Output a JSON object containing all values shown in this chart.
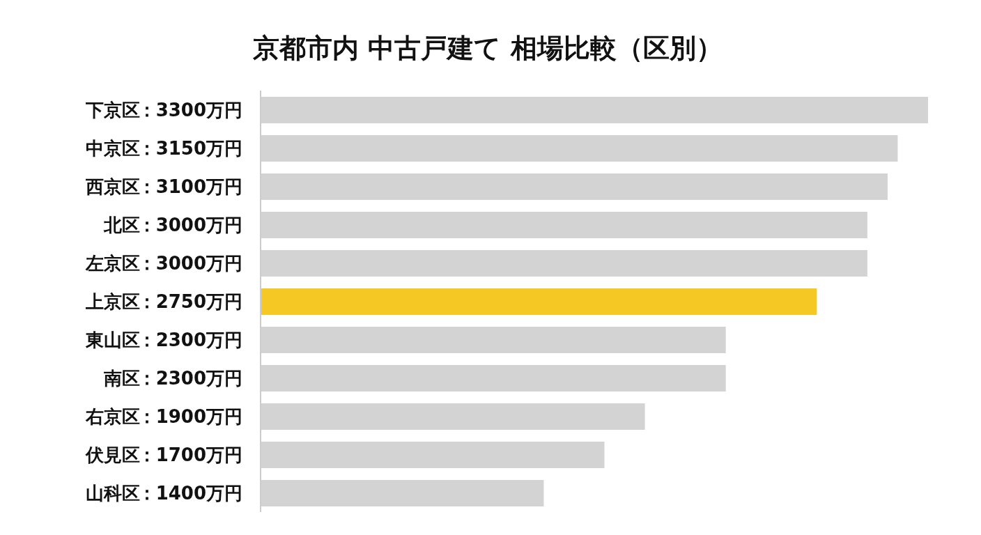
{
  "chart_data": {
    "type": "bar",
    "orientation": "horizontal",
    "title": "京都市内 中古戸建て 相場比較（区別）",
    "categories": [
      "下京区",
      "中京区",
      "西京区",
      "北区",
      "左京区",
      "上京区",
      "東山区",
      "南区",
      "右京区",
      "伏見区",
      "山科区"
    ],
    "values": [
      3300,
      3150,
      3100,
      3000,
      3000,
      2750,
      2300,
      2300,
      1900,
      1700,
      1400
    ],
    "value_labels": [
      "：3300万円",
      "：3150万円",
      "：3100万円",
      "：3000万円",
      "：3000万円",
      "：2750万円",
      "：2300万円",
      "：2300万円",
      "：1900万円",
      "：1700万円",
      "：1400万円"
    ],
    "colors": [
      "#d3d3d3",
      "#d3d3d3",
      "#d3d3d3",
      "#d3d3d3",
      "#d3d3d3",
      "#f5c823",
      "#d3d3d3",
      "#d3d3d3",
      "#d3d3d3",
      "#d3d3d3",
      "#d3d3d3"
    ],
    "grid": false
  }
}
